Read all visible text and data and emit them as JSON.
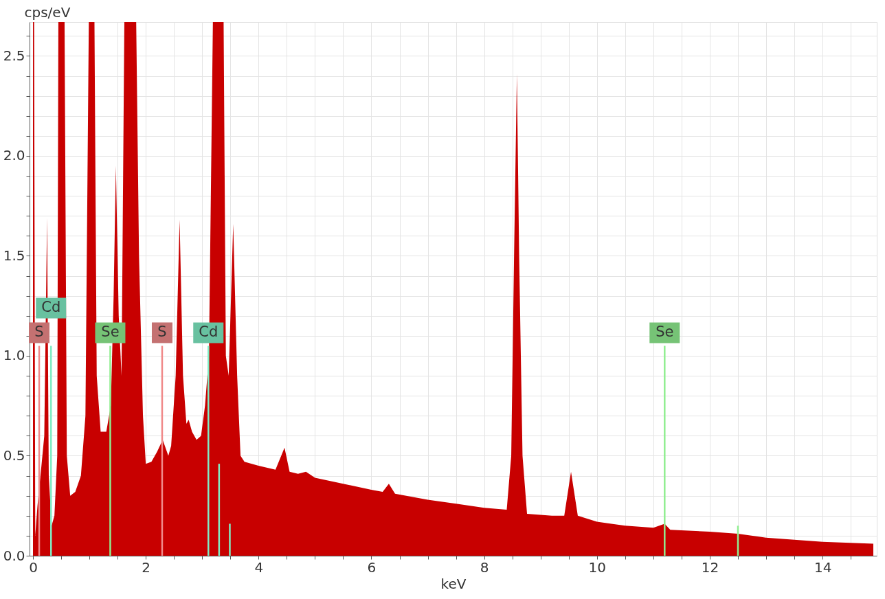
{
  "chart_data": {
    "type": "area",
    "xlabel": "keV",
    "ylabel": "cps/eV",
    "xlim": [
      0,
      14.9
    ],
    "ylim": [
      0,
      2.67
    ],
    "xticks": [
      0,
      {
        "value": 0.5,
        "label": null
      },
      {
        "value": 1,
        "label": null
      },
      {
        "value": 1.5,
        "label": null
      },
      2,
      {
        "value": 2.5,
        "label": null
      },
      {
        "value": 3,
        "label": null
      },
      {
        "value": 3.5,
        "label": null
      },
      4,
      {
        "value": 4.5,
        "label": null
      },
      {
        "value": 5,
        "label": null
      },
      {
        "value": 5.5,
        "label": null
      },
      6,
      {
        "value": 6.5,
        "label": null
      },
      {
        "value": 7,
        "label": null
      },
      {
        "value": 7.5,
        "label": null
      },
      8,
      {
        "value": 8.5,
        "label": null
      },
      {
        "value": 9,
        "label": null
      },
      {
        "value": 9.5,
        "label": null
      },
      10,
      {
        "value": 10.5,
        "label": null
      },
      {
        "value": 11,
        "label": null
      },
      {
        "value": 11.5,
        "label": null
      },
      12,
      {
        "value": 12.5,
        "label": null
      },
      {
        "value": 13,
        "label": null
      },
      {
        "value": 13.5,
        "label": null
      },
      14,
      {
        "value": 14.5,
        "label": null
      }
    ],
    "yticks": [
      {
        "value": 0,
        "label": "0.0"
      },
      {
        "value": 0.1,
        "label": null
      },
      {
        "value": 0.2,
        "label": null
      },
      {
        "value": 0.3,
        "label": null
      },
      {
        "value": 0.4,
        "label": null
      },
      0.5,
      {
        "value": 0.6,
        "label": null
      },
      {
        "value": 0.7,
        "label": null
      },
      {
        "value": 0.8,
        "label": null
      },
      {
        "value": 0.9,
        "label": null
      },
      {
        "value": 1,
        "label": "1.0"
      },
      {
        "value": 1.1,
        "label": null
      },
      {
        "value": 1.2,
        "label": null
      },
      {
        "value": 1.3,
        "label": null
      },
      {
        "value": 1.4,
        "label": null
      },
      1.5,
      {
        "value": 1.6,
        "label": null
      },
      {
        "value": 1.7,
        "label": null
      },
      {
        "value": 1.8,
        "label": null
      },
      {
        "value": 1.9,
        "label": null
      },
      {
        "value": 2,
        "label": "2.0"
      },
      {
        "value": 2.1,
        "label": null
      },
      {
        "value": 2.2,
        "label": null
      },
      {
        "value": 2.3,
        "label": null
      },
      {
        "value": 2.4,
        "label": null
      },
      2.5,
      {
        "value": 2.6,
        "label": null
      }
    ],
    "grid": true,
    "series": [
      {
        "color": "#c80000",
        "x": [
          0,
          0.02,
          0.04,
          0.08,
          0.15,
          0.2,
          0.25,
          0.28,
          0.33,
          0.38,
          0.43,
          0.45,
          0.56,
          0.6,
          0.66,
          0.75,
          0.85,
          0.93,
          0.99,
          1.09,
          1.13,
          1.2,
          1.3,
          1.38,
          1.43,
          1.47,
          1.52,
          1.57,
          1.62,
          1.83,
          1.88,
          1.95,
          2.0,
          2.1,
          2.2,
          2.3,
          2.4,
          2.45,
          2.53,
          2.6,
          2.66,
          2.72,
          2.76,
          2.82,
          2.9,
          2.98,
          3.05,
          3.12,
          3.19,
          3.38,
          3.42,
          3.47,
          3.55,
          3.62,
          3.68,
          3.75,
          4.0,
          4.3,
          4.46,
          4.55,
          4.7,
          4.84,
          5.0,
          5.5,
          6.0,
          6.2,
          6.31,
          6.42,
          7.0,
          7.5,
          8.0,
          8.4,
          8.48,
          8.53,
          8.58,
          8.62,
          8.68,
          8.76,
          9.2,
          9.42,
          9.54,
          9.66,
          10.0,
          10.5,
          11.0,
          11.2,
          11.3,
          12.0,
          12.5,
          13.0,
          13.5,
          14.0,
          14.9
        ],
        "values": [
          2.67,
          2.67,
          0.1,
          0.25,
          0.45,
          0.6,
          1.69,
          0.4,
          0.15,
          0.2,
          0.5,
          2.67,
          2.67,
          0.5,
          0.3,
          0.32,
          0.4,
          0.7,
          2.67,
          2.67,
          0.9,
          0.62,
          0.62,
          0.75,
          1.3,
          1.95,
          1.2,
          0.9,
          2.67,
          2.67,
          1.5,
          0.7,
          0.46,
          0.47,
          0.52,
          0.58,
          0.5,
          0.55,
          0.9,
          1.68,
          0.9,
          0.66,
          0.68,
          0.62,
          0.58,
          0.6,
          0.75,
          1.0,
          2.67,
          2.67,
          1.0,
          0.9,
          1.66,
          0.9,
          0.5,
          0.47,
          0.45,
          0.43,
          0.54,
          0.42,
          0.41,
          0.42,
          0.39,
          0.36,
          0.33,
          0.32,
          0.36,
          0.31,
          0.28,
          0.26,
          0.24,
          0.23,
          0.5,
          1.5,
          2.41,
          1.5,
          0.5,
          0.21,
          0.2,
          0.2,
          0.42,
          0.2,
          0.17,
          0.15,
          0.14,
          0.16,
          0.13,
          0.12,
          0.11,
          0.09,
          0.08,
          0.07,
          0.06
        ]
      },
      {
        "type": "bar",
        "x": [
          0.11,
          0.32,
          1.37,
          2.29,
          3.11,
          3.3,
          3.49,
          11.2,
          12.5
        ],
        "values": [
          1.05,
          1.05,
          1.05,
          1.05,
          1.05,
          0.46,
          0.16,
          1.05,
          0.15
        ],
        "colors": [
          "#f08a8a",
          "#80ecc4",
          "#90ee90",
          "#f08a8a",
          "#80ecc4",
          "#80ecc4",
          "#80ecc4",
          "#90ee90",
          "#90ee90"
        ],
        "value_labels": [
          "S",
          "Cd",
          "Se",
          "S",
          "Cd",
          null,
          null,
          "Se",
          null
        ]
      }
    ]
  }
}
